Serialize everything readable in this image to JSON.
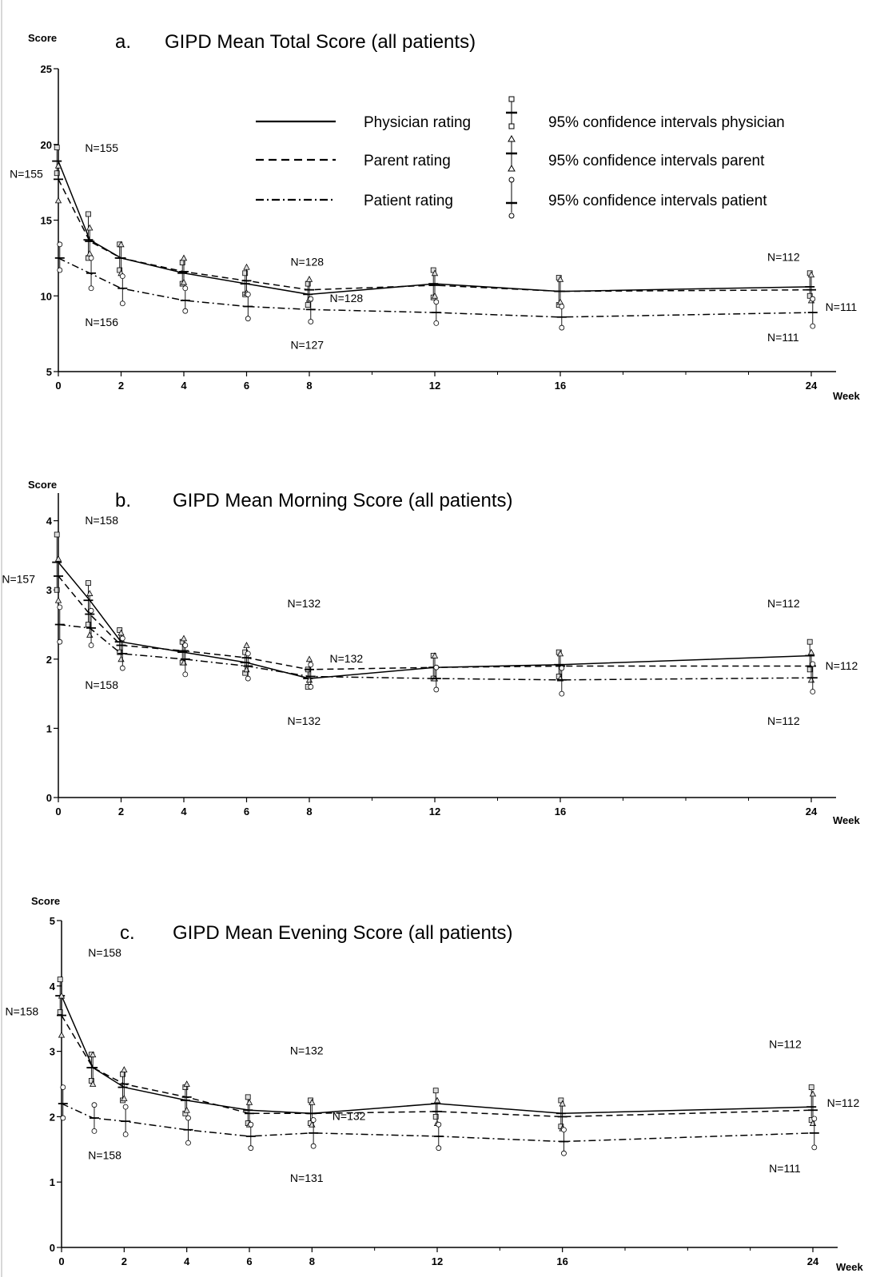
{
  "legend": {
    "items": [
      {
        "label": "Physician rating",
        "ci_label": "95% confidence intervals physician",
        "marker": "square"
      },
      {
        "label": "Parent rating",
        "ci_label": "95% confidence intervals parent",
        "marker": "triangle"
      },
      {
        "label": "Patient rating",
        "ci_label": "95% confidence intervals patient",
        "marker": "circle"
      }
    ]
  },
  "chart_data": [
    {
      "panel_letter": "a.",
      "type": "line",
      "title": "GIPD Mean Total Score (all patients)",
      "ylabel": "Score",
      "xlabel": "Week",
      "ylim": [
        5,
        25
      ],
      "yticks": [
        5,
        10,
        15,
        20,
        25
      ],
      "xticks": [
        0,
        2,
        4,
        6,
        8,
        12,
        16,
        24
      ],
      "minor_xticks": [
        10,
        14,
        18,
        20,
        22
      ],
      "x": [
        0,
        1,
        2,
        4,
        6,
        8,
        12,
        16,
        24
      ],
      "series": [
        {
          "name": "Physician rating",
          "style": "solid",
          "marker": "square",
          "values": [
            18.9,
            13.7,
            12.5,
            11.5,
            10.8,
            10.1,
            10.8,
            10.3,
            10.6
          ],
          "ci_low": [
            18.1,
            12.5,
            11.7,
            10.8,
            10.1,
            9.4,
            9.9,
            9.4,
            10.0
          ],
          "ci_high": [
            19.8,
            15.4,
            13.4,
            12.2,
            11.5,
            10.8,
            11.7,
            11.2,
            11.5
          ]
        },
        {
          "name": "Parent rating",
          "style": "dashed",
          "marker": "triangle",
          "values": [
            17.7,
            13.6,
            12.5,
            11.6,
            11.0,
            10.4,
            10.7,
            10.3,
            10.4
          ],
          "ci_low": [
            16.3,
            12.8,
            11.5,
            10.9,
            10.2,
            9.8,
            10.0,
            9.6,
            9.7
          ],
          "ci_high": [
            18.6,
            14.5,
            13.4,
            12.5,
            11.9,
            11.1,
            11.5,
            11.1,
            11.4
          ]
        },
        {
          "name": "Patient rating",
          "style": "dashdot",
          "marker": "circle",
          "values": [
            12.5,
            11.5,
            10.5,
            9.7,
            9.3,
            9.1,
            8.9,
            8.6,
            8.9
          ],
          "ci_low": [
            11.7,
            10.5,
            9.5,
            9.0,
            8.5,
            8.3,
            8.2,
            7.9,
            8.0
          ],
          "ci_high": [
            13.4,
            12.5,
            11.3,
            10.5,
            10.1,
            9.8,
            9.6,
            9.3,
            9.8
          ]
        }
      ],
      "annotations": [
        {
          "text": "N=155",
          "x": 0.85,
          "y": 19.5
        },
        {
          "text": "N=155",
          "x": -1.55,
          "y": 17.8
        },
        {
          "text": "N=156",
          "x": 0.85,
          "y": 8.0
        },
        {
          "text": "N=128",
          "x": 7.4,
          "y": 12.0
        },
        {
          "text": "N=128",
          "x": 8.65,
          "y": 9.6
        },
        {
          "text": "N=127",
          "x": 7.4,
          "y": 6.5
        },
        {
          "text": "N=112",
          "x": 22.6,
          "y": 12.3
        },
        {
          "text": "N=111",
          "x": 24.45,
          "y": 9.0
        },
        {
          "text": "N=111",
          "x": 22.6,
          "y": 7.0
        }
      ]
    },
    {
      "panel_letter": "b.",
      "type": "line",
      "title": "GIPD Mean Morning Score (all patients)",
      "ylabel": "Score",
      "xlabel": "Week",
      "ylim": [
        0,
        4.4
      ],
      "yticks": [
        0,
        1,
        2,
        3,
        4
      ],
      "xticks": [
        0,
        2,
        4,
        6,
        8,
        12,
        16,
        24
      ],
      "minor_xticks": [
        10,
        14,
        18,
        20,
        22
      ],
      "x": [
        0,
        1,
        2,
        4,
        6,
        8,
        12,
        16,
        24
      ],
      "series": [
        {
          "name": "Physician rating",
          "style": "solid",
          "marker": "square",
          "values": [
            3.4,
            2.85,
            2.25,
            2.1,
            1.95,
            1.72,
            1.88,
            1.92,
            2.05
          ],
          "ci_low": [
            3.0,
            2.5,
            2.1,
            1.95,
            1.8,
            1.6,
            1.72,
            1.75,
            1.85
          ],
          "ci_high": [
            3.8,
            3.1,
            2.42,
            2.25,
            2.1,
            1.85,
            2.05,
            2.1,
            2.25
          ]
        },
        {
          "name": "Parent rating",
          "style": "dashed",
          "marker": "triangle",
          "values": [
            3.2,
            2.65,
            2.2,
            2.12,
            2.02,
            1.85,
            1.88,
            1.9,
            1.9
          ],
          "ci_low": [
            2.85,
            2.35,
            2.0,
            1.95,
            1.85,
            1.7,
            1.72,
            1.72,
            1.7
          ],
          "ci_high": [
            3.45,
            2.95,
            2.38,
            2.3,
            2.2,
            2.0,
            2.05,
            2.08,
            2.1
          ]
        },
        {
          "name": "Patient rating",
          "style": "dashdot",
          "marker": "circle",
          "values": [
            2.5,
            2.45,
            2.08,
            2.0,
            1.9,
            1.75,
            1.72,
            1.7,
            1.73
          ],
          "ci_low": [
            2.25,
            2.2,
            1.87,
            1.78,
            1.72,
            1.6,
            1.56,
            1.5,
            1.53
          ],
          "ci_high": [
            2.75,
            2.7,
            2.3,
            2.2,
            2.08,
            1.92,
            1.88,
            1.87,
            1.93
          ]
        }
      ],
      "annotations": [
        {
          "text": "N=158",
          "x": 0.85,
          "y": 3.95
        },
        {
          "text": "N=157",
          "x": -1.8,
          "y": 3.1
        },
        {
          "text": "N=158",
          "x": 0.85,
          "y": 1.57
        },
        {
          "text": "N=132",
          "x": 7.3,
          "y": 2.75
        },
        {
          "text": "N=132",
          "x": 8.65,
          "y": 1.95
        },
        {
          "text": "N=132",
          "x": 7.3,
          "y": 1.05
        },
        {
          "text": "N=112",
          "x": 22.6,
          "y": 2.75
        },
        {
          "text": "N=112",
          "x": 24.45,
          "y": 1.85
        },
        {
          "text": "N=112",
          "x": 22.6,
          "y": 1.05
        }
      ]
    },
    {
      "panel_letter": "c.",
      "type": "line",
      "title": "GIPD Mean Evening Score (all patients)",
      "ylabel": "Score",
      "xlabel": "Week",
      "ylim": [
        0,
        5
      ],
      "yticks": [
        0,
        1,
        2,
        3,
        4,
        5
      ],
      "xticks": [
        0,
        2,
        4,
        6,
        8,
        12,
        16,
        24
      ],
      "minor_xticks": [
        10,
        14,
        18,
        20,
        22
      ],
      "x": [
        0,
        1,
        2,
        4,
        6,
        8,
        12,
        16,
        24
      ],
      "series": [
        {
          "name": "Physician rating",
          "style": "solid",
          "marker": "square",
          "values": [
            3.85,
            2.75,
            2.45,
            2.25,
            2.1,
            2.05,
            2.2,
            2.05,
            2.15
          ],
          "ci_low": [
            3.6,
            2.55,
            2.25,
            2.05,
            1.9,
            1.9,
            2.0,
            1.85,
            1.95
          ],
          "ci_high": [
            4.1,
            2.95,
            2.65,
            2.45,
            2.3,
            2.25,
            2.4,
            2.25,
            2.45
          ]
        },
        {
          "name": "Parent rating",
          "style": "dashed",
          "marker": "triangle",
          "values": [
            3.55,
            2.75,
            2.5,
            2.3,
            2.05,
            2.05,
            2.08,
            2.0,
            2.1
          ],
          "ci_low": [
            3.25,
            2.5,
            2.28,
            2.1,
            1.88,
            1.88,
            1.9,
            1.82,
            1.9
          ],
          "ci_high": [
            3.85,
            2.95,
            2.72,
            2.5,
            2.22,
            2.22,
            2.25,
            2.2,
            2.35
          ]
        },
        {
          "name": "Patient rating",
          "style": "dashdot",
          "marker": "circle",
          "values": [
            2.2,
            1.98,
            1.93,
            1.8,
            1.7,
            1.75,
            1.7,
            1.62,
            1.75
          ],
          "ci_low": [
            1.98,
            1.78,
            1.73,
            1.6,
            1.52,
            1.55,
            1.52,
            1.44,
            1.53
          ],
          "ci_high": [
            2.45,
            2.18,
            2.15,
            1.98,
            1.88,
            1.95,
            1.88,
            1.8,
            1.97
          ]
        }
      ],
      "annotations": [
        {
          "text": "N=158",
          "x": 0.85,
          "y": 4.45
        },
        {
          "text": "N=158",
          "x": -1.8,
          "y": 3.55
        },
        {
          "text": "N=158",
          "x": 0.85,
          "y": 1.35
        },
        {
          "text": "N=132",
          "x": 7.3,
          "y": 2.95
        },
        {
          "text": "N=132",
          "x": 8.65,
          "y": 1.95
        },
        {
          "text": "N=131",
          "x": 7.3,
          "y": 1.0
        },
        {
          "text": "N=112",
          "x": 22.6,
          "y": 3.05
        },
        {
          "text": "N=112",
          "x": 24.45,
          "y": 2.15
        },
        {
          "text": "N=111",
          "x": 22.6,
          "y": 1.15
        }
      ]
    }
  ]
}
